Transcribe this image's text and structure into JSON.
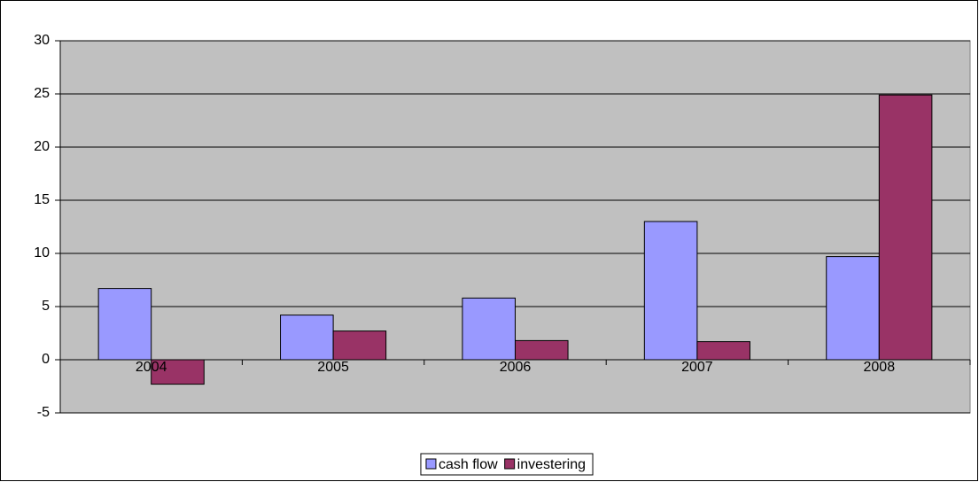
{
  "chart_data": {
    "type": "bar",
    "categories": [
      "2004",
      "2005",
      "2006",
      "2007",
      "2008"
    ],
    "series": [
      {
        "name": "cash flow",
        "color": "#9999ff",
        "values": [
          6.7,
          4.2,
          5.8,
          13,
          9.7
        ]
      },
      {
        "name": "investering",
        "color": "#993366",
        "values": [
          -2.3,
          2.7,
          1.8,
          1.7,
          24.9
        ]
      }
    ],
    "ylim": [
      -5,
      30
    ],
    "yticks": [
      -5,
      0,
      5,
      10,
      15,
      20,
      25,
      30
    ],
    "grid": true,
    "legend": "bottom"
  }
}
